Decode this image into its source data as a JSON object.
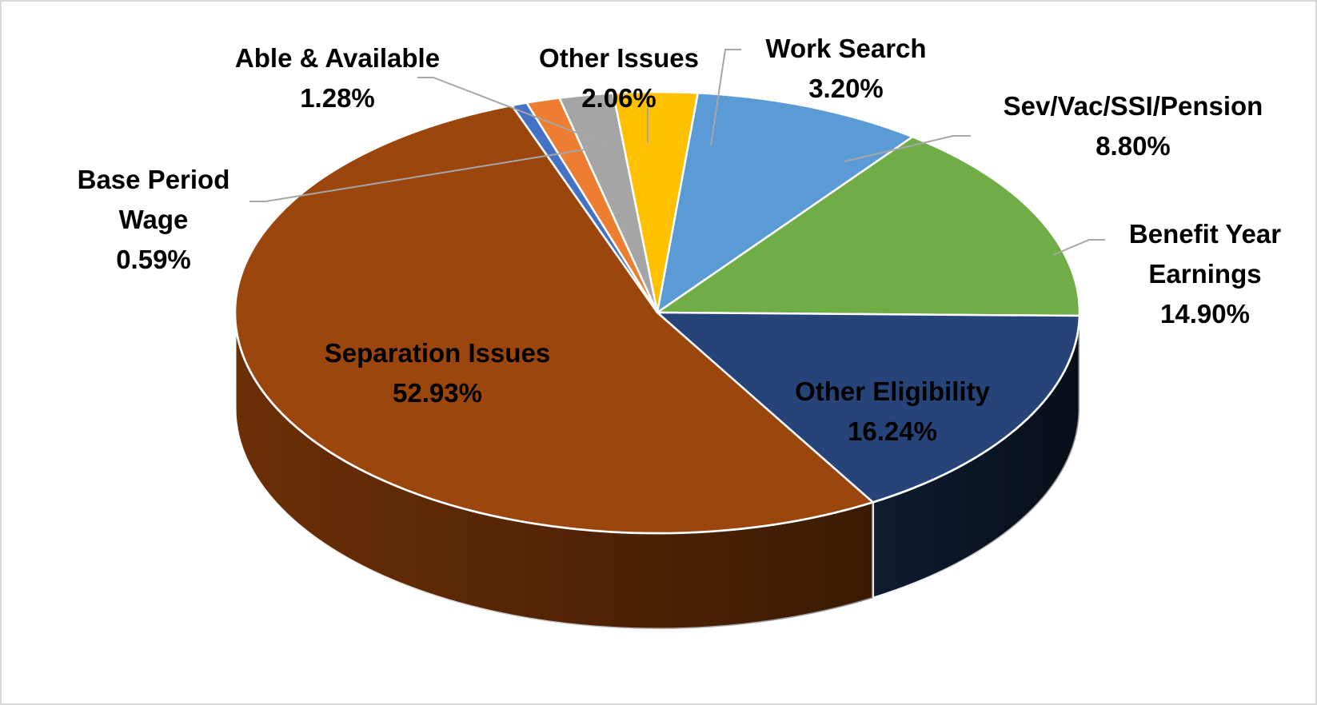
{
  "chart_data": {
    "type": "pie",
    "style": "3d-tilted",
    "slices": [
      {
        "label_lines": [
          "Work Search"
        ],
        "value_label": "3.20%",
        "value": 3.2,
        "color": "#ffc000",
        "side": "#bf9000"
      },
      {
        "label_lines": [
          "Sev/Vac/SSI/Pension"
        ],
        "value_label": "8.80%",
        "value": 8.8,
        "color": "#5b9bd5",
        "side": "#2e75b6"
      },
      {
        "label_lines": [
          "Benefit Year",
          "Earnings"
        ],
        "value_label": "14.90%",
        "value": 14.9,
        "color": "#70ad47",
        "side": "#4e7a31"
      },
      {
        "label_lines": [
          "Other Eligibility"
        ],
        "value_label": "16.24%",
        "value": 16.24,
        "color": "#264478",
        "side": "#0f1b30"
      },
      {
        "label_lines": [
          "Separation Issues"
        ],
        "value_label": "52.93%",
        "value": 52.93,
        "color": "#9a460d",
        "side": "#6b2f06"
      },
      {
        "label_lines": [
          "Base Period",
          "Wage"
        ],
        "value_label": "0.59%",
        "value": 0.59,
        "color": "#4472c4",
        "side": "#2f528f"
      },
      {
        "label_lines": [
          "Able & Available"
        ],
        "value_label": "1.28%",
        "value": 1.28,
        "color": "#ed7d31",
        "side": "#b35a1e"
      },
      {
        "label_lines": [
          "Other Issues"
        ],
        "value_label": "2.06%",
        "value": 2.06,
        "color": "#a5a5a5",
        "side": "#7b7b7b"
      }
    ],
    "legend": "none",
    "data_labels": "category-and-percent"
  }
}
